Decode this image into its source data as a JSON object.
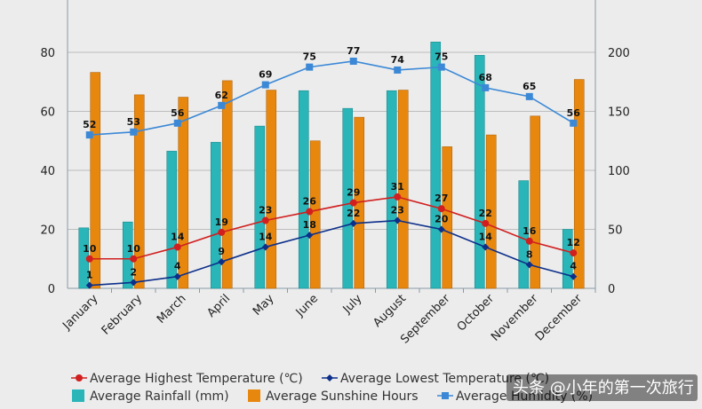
{
  "chart_data": {
    "type": "bar",
    "categories": [
      "January",
      "February",
      "March",
      "April",
      "May",
      "June",
      "July",
      "August",
      "September",
      "October",
      "November",
      "December"
    ],
    "y_left": {
      "min": 0,
      "max": 90,
      "ticks": [
        0,
        20,
        40,
        60,
        80
      ]
    },
    "y_right": {
      "min": 0,
      "max": 225,
      "ticks": [
        0,
        50,
        100,
        150,
        200
      ]
    },
    "grid": true,
    "legend_position": "bottom",
    "series": [
      {
        "key": "rain",
        "name": "Average Rainfall (mm)",
        "kind": "bar",
        "axis": "left",
        "color": "#2ab5b8",
        "values": [
          20.5,
          22.5,
          46.5,
          49.5,
          55,
          67,
          61,
          67,
          83.5,
          79,
          36.5,
          20
        ]
      },
      {
        "key": "sun",
        "name": "Average Sunshine Hours",
        "kind": "bar",
        "axis": "right",
        "color": "#e8870e",
        "values": [
          183,
          164,
          162,
          176,
          168,
          125,
          145,
          168,
          120,
          130,
          146,
          177
        ]
      },
      {
        "key": "high",
        "name": "Average Highest Temperature (℃)",
        "kind": "line",
        "axis": "left",
        "color": "#d11f1f",
        "marker": "circle",
        "values": [
          10,
          10,
          14,
          19,
          23,
          26,
          29,
          31,
          27,
          22,
          16,
          12
        ],
        "labels": true
      },
      {
        "key": "low",
        "name": "Average Lowest Temperature (℃)",
        "kind": "line",
        "axis": "left",
        "color": "#0c2f8a",
        "marker": "diamond",
        "values": [
          1,
          2,
          4,
          9,
          14,
          18,
          22,
          23,
          20,
          14,
          8,
          4
        ],
        "labels": true
      },
      {
        "key": "hum",
        "name": "Average Humidity (%)",
        "kind": "line",
        "axis": "left",
        "color": "#3b88d6",
        "marker": "square",
        "values": [
          52,
          53,
          56,
          62,
          69,
          75,
          77,
          74,
          75,
          68,
          65,
          56
        ],
        "labels": true
      }
    ]
  },
  "watermark": "头条 @小年的第一次旅行"
}
